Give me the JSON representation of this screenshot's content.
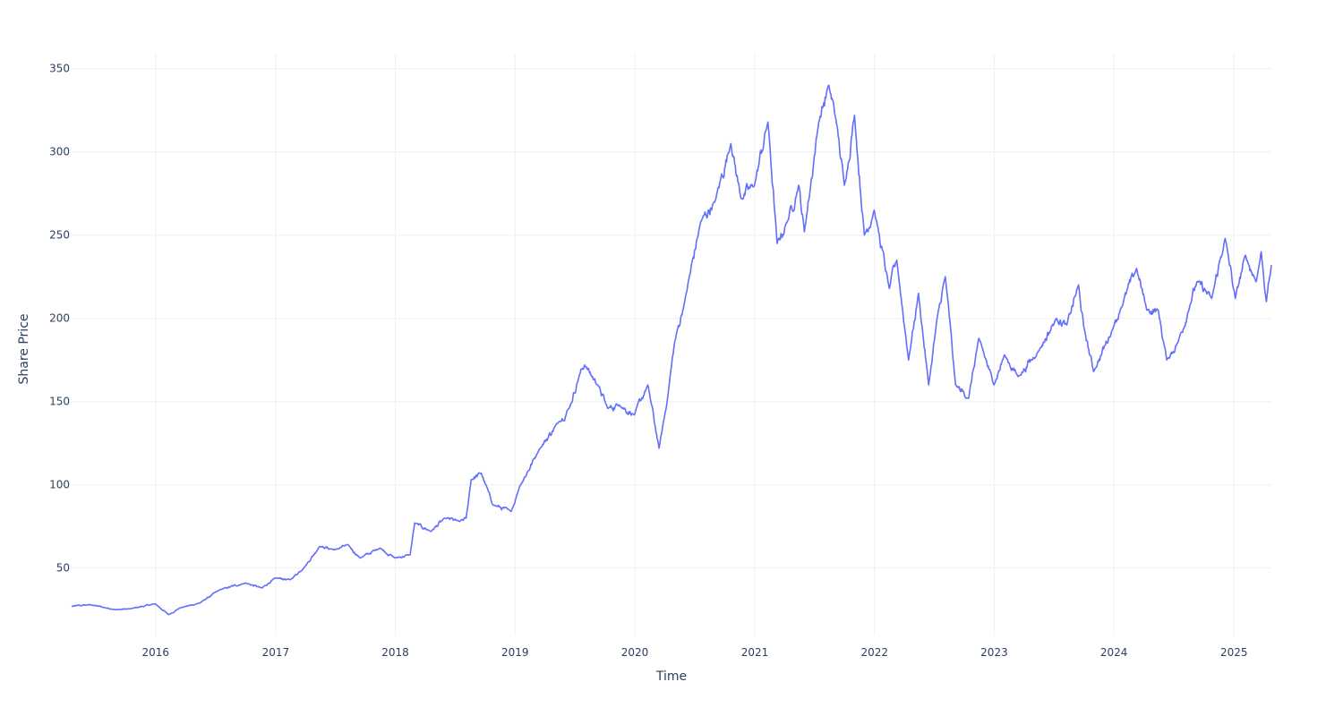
{
  "chart_data": {
    "type": "line",
    "title": "",
    "xlabel": "Time",
    "ylabel": "Share Price",
    "x_ticks": [
      "2016",
      "2017",
      "2018",
      "2019",
      "2020",
      "2021",
      "2022",
      "2023",
      "2024",
      "2025"
    ],
    "y_ticks": [
      50,
      100,
      150,
      200,
      250,
      300,
      350
    ],
    "xlim": [
      "2015-04-20",
      "2025-04-25"
    ],
    "ylim": [
      9.5,
      359
    ],
    "grid": true,
    "legend": "none",
    "colors": {
      "line": "#636efa",
      "grid": "#ebf0f8",
      "text": "#2a3f5f",
      "background": "#ffffff"
    },
    "series": [
      {
        "points": [
          [
            "2015-04-20",
            27
          ],
          [
            "2015-06-15",
            28
          ],
          [
            "2015-09-01",
            25
          ],
          [
            "2015-10-15",
            25.5
          ],
          [
            "2015-12-31",
            28.5
          ],
          [
            "2016-02-10",
            22
          ],
          [
            "2016-03-15",
            26
          ],
          [
            "2016-05-15",
            29
          ],
          [
            "2016-07-15",
            37
          ],
          [
            "2016-10-01",
            41
          ],
          [
            "2016-11-20",
            38
          ],
          [
            "2016-12-31",
            44
          ],
          [
            "2017-02-15",
            43
          ],
          [
            "2017-04-01",
            51
          ],
          [
            "2017-05-15",
            63
          ],
          [
            "2017-07-01",
            61
          ],
          [
            "2017-08-10",
            64
          ],
          [
            "2017-09-15",
            56
          ],
          [
            "2017-11-15",
            62
          ],
          [
            "2017-12-31",
            56
          ],
          [
            "2018-02-15",
            58
          ],
          [
            "2018-03-01",
            77
          ],
          [
            "2018-04-20",
            72
          ],
          [
            "2018-06-01",
            80
          ],
          [
            "2018-07-15",
            78
          ],
          [
            "2018-08-05",
            80
          ],
          [
            "2018-08-20",
            103
          ],
          [
            "2018-09-20",
            107
          ],
          [
            "2018-10-25",
            88
          ],
          [
            "2018-12-20",
            84
          ],
          [
            "2019-01-15",
            99
          ],
          [
            "2019-03-15",
            121
          ],
          [
            "2019-05-15",
            138
          ],
          [
            "2019-06-15",
            146
          ],
          [
            "2019-07-15",
            165
          ],
          [
            "2019-08-01",
            172
          ],
          [
            "2019-09-10",
            160
          ],
          [
            "2019-10-10",
            146
          ],
          [
            "2019-11-15",
            148
          ],
          [
            "2019-12-31",
            142
          ],
          [
            "2020-02-10",
            160
          ],
          [
            "2020-03-15",
            122
          ],
          [
            "2020-04-10",
            152
          ],
          [
            "2020-05-01",
            185
          ],
          [
            "2020-06-01",
            210
          ],
          [
            "2020-07-20",
            258
          ],
          [
            "2020-09-01",
            270
          ],
          [
            "2020-10-20",
            305
          ],
          [
            "2020-11-20",
            272
          ],
          [
            "2020-12-31",
            280
          ],
          [
            "2021-02-10",
            318
          ],
          [
            "2021-03-10",
            245
          ],
          [
            "2021-04-10",
            258
          ],
          [
            "2021-05-15",
            280
          ],
          [
            "2021-06-01",
            252
          ],
          [
            "2021-07-15",
            318
          ],
          [
            "2021-08-15",
            340
          ],
          [
            "2021-09-05",
            320
          ],
          [
            "2021-10-01",
            280
          ],
          [
            "2021-11-01",
            322
          ],
          [
            "2021-12-01",
            250
          ],
          [
            "2021-12-31",
            265
          ],
          [
            "2022-02-15",
            218
          ],
          [
            "2022-03-10",
            235
          ],
          [
            "2022-04-15",
            175
          ],
          [
            "2022-05-15",
            215
          ],
          [
            "2022-06-15",
            160
          ],
          [
            "2022-07-15",
            205
          ],
          [
            "2022-08-05",
            225
          ],
          [
            "2022-09-05",
            160
          ],
          [
            "2022-10-15",
            152
          ],
          [
            "2022-11-15",
            188
          ],
          [
            "2022-12-31",
            160
          ],
          [
            "2023-02-01",
            178
          ],
          [
            "2023-03-15",
            165
          ],
          [
            "2023-05-15",
            180
          ],
          [
            "2023-07-10",
            200
          ],
          [
            "2023-08-10",
            196
          ],
          [
            "2023-09-15",
            220
          ],
          [
            "2023-10-01",
            195
          ],
          [
            "2023-10-31",
            168
          ],
          [
            "2023-12-31",
            195
          ],
          [
            "2024-01-20",
            205
          ],
          [
            "2024-03-10",
            230
          ],
          [
            "2024-04-10",
            205
          ],
          [
            "2024-05-15",
            205
          ],
          [
            "2024-06-10",
            175
          ],
          [
            "2024-07-15",
            186
          ],
          [
            "2024-08-20",
            208
          ],
          [
            "2024-09-10",
            222
          ],
          [
            "2024-10-25",
            212
          ],
          [
            "2024-12-05",
            248
          ],
          [
            "2025-01-05",
            212
          ],
          [
            "2025-02-05",
            238
          ],
          [
            "2025-03-10",
            222
          ],
          [
            "2025-03-25",
            240
          ],
          [
            "2025-04-10",
            210
          ],
          [
            "2025-04-25",
            232
          ]
        ]
      }
    ]
  }
}
